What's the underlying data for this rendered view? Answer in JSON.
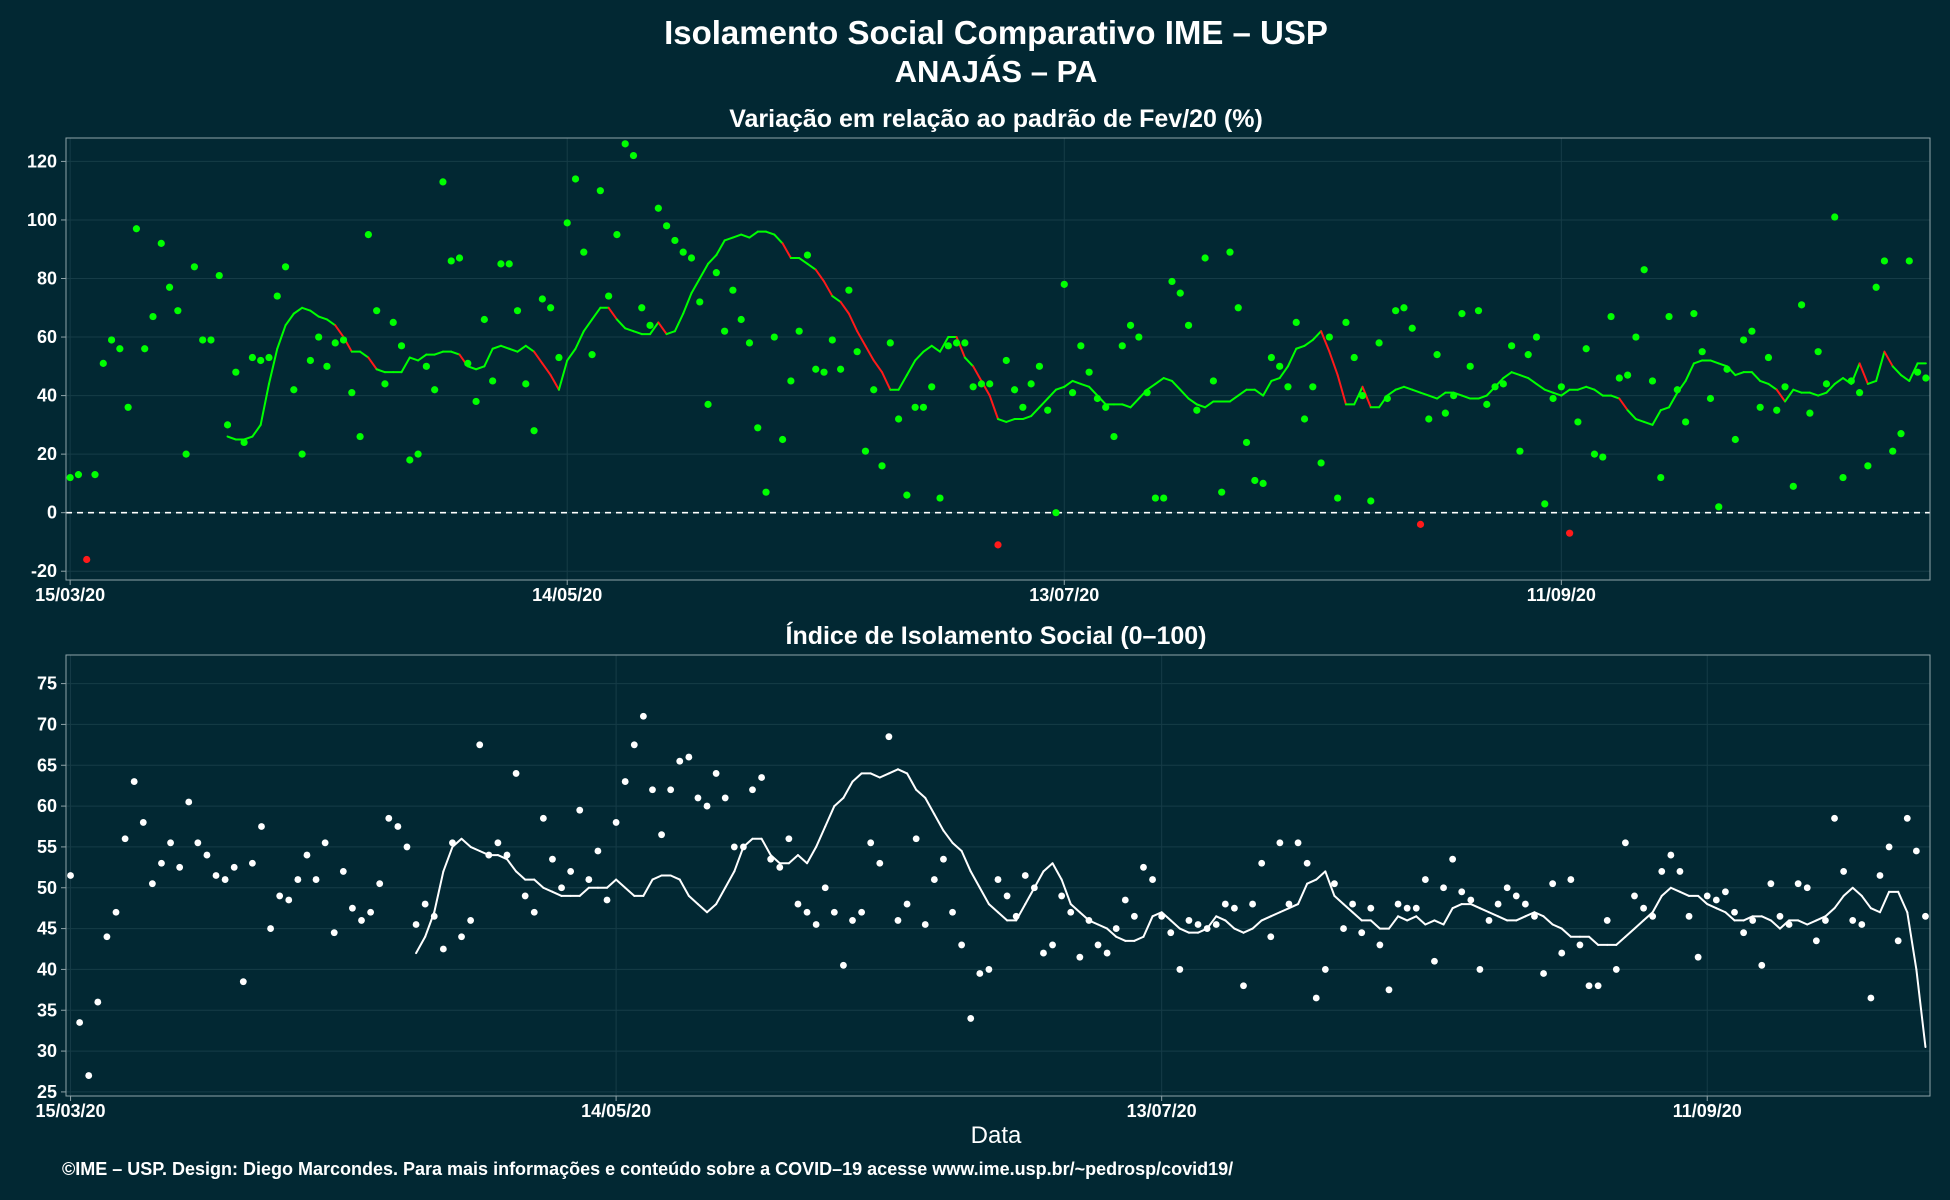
{
  "header": {
    "title": "Isolamento Social Comparativo IME – USP",
    "subtitle": "ANAJÁS – PA"
  },
  "footer": "©IME – USP. Design: Diego Marcondes. Para mais informações e conteúdo sobre a COVID–19 acesse www.ime.usp.br/~pedrosp/covid19/",
  "colors": {
    "background": "#022833",
    "positive": "#00ff00",
    "negative": "#ff1a1a",
    "index": "#ffffff",
    "frame": "#8fa3a8"
  },
  "chart_data": [
    {
      "type": "scatter",
      "title": "Variação em relação ao padrão de Fev/20 (%)",
      "xlabel": "",
      "ylabel": "",
      "x_start": "15/03/20",
      "x_ticks": [
        "15/03/20",
        "14/05/20",
        "13/07/20",
        "11/09/20"
      ],
      "ylim": [
        -23,
        128
      ],
      "y_ticks": [
        -20,
        0,
        20,
        40,
        60,
        80,
        100,
        120
      ],
      "reference_line": 0,
      "grid": true,
      "legend": "none",
      "series": [
        {
          "kind": "points",
          "values": [
            12,
            13,
            -16,
            13,
            51,
            59,
            56,
            36,
            97,
            56,
            67,
            92,
            77,
            69,
            20,
            84,
            59,
            59,
            81,
            30,
            48,
            24,
            53,
            52,
            53,
            74,
            84,
            42,
            20,
            52,
            60,
            50,
            58,
            59,
            41,
            26,
            95,
            69,
            44,
            65,
            57,
            18,
            20,
            50,
            42,
            113,
            86,
            87,
            51,
            38,
            66,
            45,
            85,
            85,
            69,
            44,
            28,
            73,
            70,
            53,
            99,
            114,
            89,
            54,
            110,
            74,
            95,
            126,
            122,
            70,
            64,
            104,
            98,
            93,
            89,
            87,
            72,
            37,
            82,
            62,
            76,
            66,
            58,
            29,
            7,
            60,
            25,
            45,
            62,
            88,
            49,
            48,
            59,
            49,
            76,
            55,
            21,
            42,
            16,
            58,
            32,
            6,
            36,
            36,
            43,
            5,
            57,
            58,
            58,
            43,
            44,
            44,
            -11,
            52,
            42,
            36,
            44,
            50,
            35,
            0,
            78,
            41,
            57,
            48,
            39,
            36,
            26,
            57,
            64,
            60,
            41,
            5,
            5,
            79,
            75,
            64,
            35,
            87,
            45,
            7,
            89,
            70,
            24,
            11,
            10,
            53,
            50,
            43,
            65,
            32,
            43,
            17,
            60,
            5,
            65,
            53,
            40,
            4,
            58,
            39,
            69,
            70,
            63,
            -4,
            32,
            54,
            34,
            40,
            68,
            50,
            69,
            37,
            43,
            44,
            57,
            21,
            54,
            60,
            3,
            39,
            43,
            -7,
            31,
            56,
            20,
            19,
            67,
            46,
            47,
            60,
            83,
            45,
            12,
            67,
            42,
            31,
            68,
            55,
            39,
            2,
            49,
            25,
            59,
            62,
            36,
            53,
            35,
            43,
            9,
            71,
            34,
            55,
            44,
            101,
            12,
            45,
            41,
            16,
            77,
            86,
            21,
            27,
            86,
            48,
            46
          ]
        },
        {
          "kind": "moving_average",
          "values": [
            26,
            25,
            25,
            26,
            30,
            44,
            56,
            64,
            68,
            70,
            69,
            67,
            66,
            64,
            60,
            55,
            55,
            53,
            49,
            48,
            48,
            48,
            53,
            52,
            54,
            54,
            55,
            55,
            54,
            50,
            49,
            50,
            56,
            57,
            56,
            55,
            57,
            55,
            51,
            47,
            42,
            52,
            56,
            62,
            66,
            70,
            70,
            66,
            63,
            62,
            61,
            61,
            65,
            61,
            62,
            68,
            75,
            80,
            85,
            88,
            93,
            94,
            95,
            94,
            96,
            96,
            95,
            92,
            87,
            87,
            85,
            83,
            79,
            74,
            72,
            68,
            62,
            57,
            52,
            48,
            42,
            42,
            47,
            52,
            55,
            57,
            55,
            60,
            60,
            53,
            50,
            45,
            40,
            32,
            31,
            32,
            32,
            33,
            36,
            39,
            42,
            43,
            45,
            44,
            43,
            40,
            37,
            37,
            37,
            36,
            39,
            42,
            44,
            46,
            45,
            42,
            39,
            37,
            36,
            38,
            38,
            38,
            40,
            42,
            42,
            40,
            45,
            46,
            50,
            56,
            57,
            59,
            62,
            55,
            47,
            37,
            37,
            43,
            36,
            36,
            40,
            42,
            43,
            42,
            41,
            40,
            39,
            41,
            41,
            40,
            39,
            39,
            40,
            43,
            46,
            48,
            47,
            46,
            44,
            42,
            41,
            40,
            42,
            42,
            43,
            42,
            40,
            40,
            39,
            35,
            32,
            31,
            30,
            35,
            36,
            41,
            45,
            51,
            52,
            52,
            51,
            50,
            47,
            48,
            48,
            45,
            44,
            42,
            38,
            42,
            41,
            41,
            40,
            41,
            44,
            46,
            44,
            51,
            44,
            45,
            55,
            50,
            47,
            45,
            51,
            51
          ]
        }
      ]
    },
    {
      "type": "scatter",
      "title": "Índice de Isolamento Social (0–100)",
      "xlabel": "Data",
      "ylabel": "",
      "x_start": "15/03/20",
      "x_ticks": [
        "15/03/20",
        "14/05/20",
        "13/07/20",
        "11/09/20"
      ],
      "ylim": [
        24.5,
        78.5
      ],
      "y_ticks": [
        25,
        30,
        35,
        40,
        45,
        50,
        55,
        60,
        65,
        70,
        75
      ],
      "grid": true,
      "legend": "none",
      "series": [
        {
          "kind": "points",
          "values": [
            51.5,
            33.5,
            27,
            36,
            44,
            47,
            56,
            63,
            58,
            50.5,
            53,
            55.5,
            52.5,
            60.5,
            55.5,
            54,
            51.5,
            51,
            52.5,
            38.5,
            53,
            57.5,
            45,
            49,
            48.5,
            51,
            54,
            51,
            55.5,
            44.5,
            52,
            47.5,
            46,
            47,
            50.5,
            58.5,
            57.5,
            55,
            45.5,
            48,
            46.5,
            42.5,
            55.5,
            44,
            46,
            67.5,
            54,
            55.5,
            54,
            64,
            49,
            47,
            58.5,
            53.5,
            50,
            52,
            59.5,
            51,
            54.5,
            48.5,
            58,
            63,
            67.5,
            71,
            62,
            56.5,
            62,
            65.5,
            66,
            61,
            60,
            64,
            61,
            55,
            55,
            62,
            63.5,
            53.5,
            52.5,
            56,
            48,
            47,
            45.5,
            50,
            47,
            40.5,
            46,
            47,
            55.5,
            53,
            68.5,
            46,
            48,
            56,
            45.5,
            51,
            53.5,
            47,
            43,
            34,
            39.5,
            40,
            51,
            49,
            46.5,
            51.5,
            50,
            42,
            43,
            49,
            47,
            41.5,
            46,
            43,
            42,
            45,
            48.5,
            46.5,
            52.5,
            51,
            46.5,
            44.5,
            40,
            46,
            45.5,
            45,
            45.5,
            48,
            47.5,
            38,
            48,
            53,
            44,
            55.5,
            48,
            55.5,
            53,
            36.5,
            40,
            50.5,
            45,
            48,
            44.5,
            47.5,
            43,
            37.5,
            48,
            47.5,
            47.5,
            51,
            41,
            50,
            53.5,
            49.5,
            48.5,
            40,
            46,
            48,
            50,
            49,
            48,
            46.5,
            39.5,
            50.5,
            42,
            51,
            43,
            38,
            38,
            46,
            40,
            55.5,
            49,
            47.5,
            46.5,
            52,
            54,
            52,
            46.5,
            41.5,
            49,
            48.5,
            49.5,
            47,
            44.5,
            46,
            40.5,
            50.5,
            46.5,
            45.5,
            50.5,
            50,
            43.5,
            46,
            58.5,
            52,
            46,
            45.5,
            36.5,
            51.5,
            55,
            43.5,
            58.5,
            54.5,
            46.5
          ]
        },
        {
          "kind": "moving_average",
          "values": [
            42,
            44,
            47,
            52,
            55,
            56,
            55,
            54.5,
            54,
            54,
            53.5,
            52,
            51,
            51,
            50,
            49.5,
            49,
            49,
            49,
            50,
            50,
            50,
            51,
            50,
            49,
            49,
            51,
            51.5,
            51.5,
            51,
            49,
            48,
            47,
            48,
            50,
            52,
            55,
            56,
            56,
            54,
            53,
            53,
            54,
            53,
            55,
            57.5,
            60,
            61,
            63,
            64,
            64,
            63.5,
            64,
            64.5,
            64,
            62,
            61,
            59,
            57,
            55.5,
            54.5,
            52,
            50,
            48,
            47,
            46,
            46,
            48,
            50,
            52,
            53,
            51,
            48,
            47,
            46,
            45.5,
            45,
            44,
            43.5,
            43.5,
            44,
            46.5,
            47,
            46,
            45,
            44.5,
            44.5,
            45,
            46.5,
            46,
            45,
            44.5,
            45,
            46,
            46.5,
            47,
            47.5,
            48,
            50.5,
            51,
            52,
            49,
            48,
            47,
            46,
            46,
            45,
            45,
            46.5,
            46,
            46.5,
            45.5,
            46,
            45.5,
            47.5,
            48,
            48,
            47.5,
            47,
            46.5,
            46,
            46,
            46.5,
            47,
            46.5,
            45.5,
            45,
            44,
            44,
            44,
            43,
            43,
            43,
            44,
            45,
            46,
            47,
            49,
            50,
            49.5,
            49,
            49,
            48,
            47.5,
            47,
            46,
            46,
            46.5,
            46.5,
            46,
            45,
            46,
            46,
            45.5,
            46,
            46.5,
            47.5,
            49,
            50,
            49,
            47.5,
            47,
            49.5,
            49.5,
            47,
            40,
            30.5
          ]
        }
      ]
    }
  ]
}
